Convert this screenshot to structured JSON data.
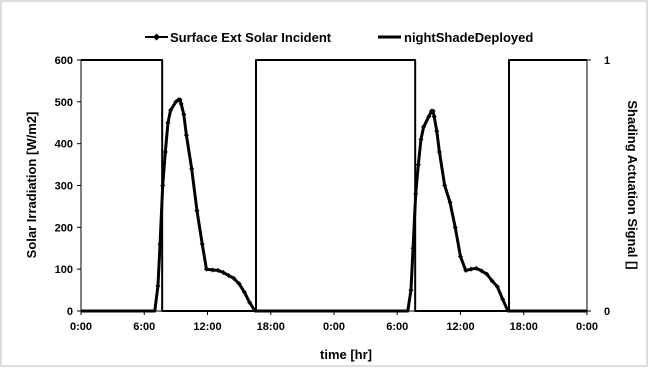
{
  "chart_data": {
    "type": "line",
    "xlabel": "time [hr]",
    "ylabel": "Solar Irradiation [W/m2]",
    "y2label": "Shading Actuation Signal []",
    "x_tick_labels": [
      "0:00",
      "6:00",
      "12:00",
      "18:00",
      "0:00",
      "6:00",
      "12:00",
      "18:00",
      "0:00"
    ],
    "x_tick_hours": [
      0,
      6,
      12,
      18,
      24,
      30,
      36,
      42,
      48
    ],
    "xlim": [
      0,
      48
    ],
    "ylim": [
      0,
      600
    ],
    "y_ticks": [
      0,
      100,
      200,
      300,
      400,
      500,
      600
    ],
    "y2lim": [
      0,
      1
    ],
    "y2_ticks": [
      0,
      1
    ],
    "grid": false,
    "legend_position": "top",
    "series": [
      {
        "name": "Surface Ext Solar Incident",
        "axis": "left",
        "marker": "small-diamond",
        "color": "#000000",
        "x": [
          0,
          7.0,
          7.3,
          7.5,
          7.75,
          8.0,
          8.25,
          8.5,
          9.0,
          9.25,
          9.4,
          9.5,
          9.75,
          10.0,
          10.5,
          11.0,
          11.5,
          11.9,
          12.5,
          13.0,
          13.5,
          14.0,
          14.5,
          15.0,
          15.5,
          16.0,
          16.5,
          18,
          24,
          31.0,
          31.3,
          31.5,
          31.75,
          32.0,
          32.25,
          32.5,
          33.0,
          33.25,
          33.4,
          33.5,
          33.75,
          34.0,
          34.5,
          35.0,
          35.5,
          36.0,
          36.5,
          37.0,
          37.5,
          38.0,
          38.5,
          39.0,
          39.5,
          40.0,
          40.5,
          42,
          48
        ],
        "y": [
          0,
          0,
          60,
          160,
          300,
          380,
          450,
          480,
          500,
          505,
          505,
          495,
          470,
          420,
          340,
          240,
          160,
          100,
          98,
          97,
          92,
          85,
          78,
          65,
          45,
          20,
          0,
          0,
          0,
          0,
          50,
          150,
          280,
          350,
          410,
          440,
          465,
          478,
          478,
          465,
          430,
          380,
          300,
          260,
          200,
          130,
          97,
          100,
          102,
          96,
          88,
          72,
          58,
          28,
          0,
          0,
          0
        ]
      },
      {
        "name": "nightShadeDeployed",
        "axis": "right",
        "marker": "none",
        "color": "#000000",
        "x": [
          0,
          7.7,
          7.7,
          16.6,
          16.6,
          31.7,
          31.7,
          40.6,
          40.6,
          48
        ],
        "y": [
          1,
          1,
          0,
          0,
          1,
          1,
          0,
          0,
          1,
          1
        ]
      }
    ]
  }
}
